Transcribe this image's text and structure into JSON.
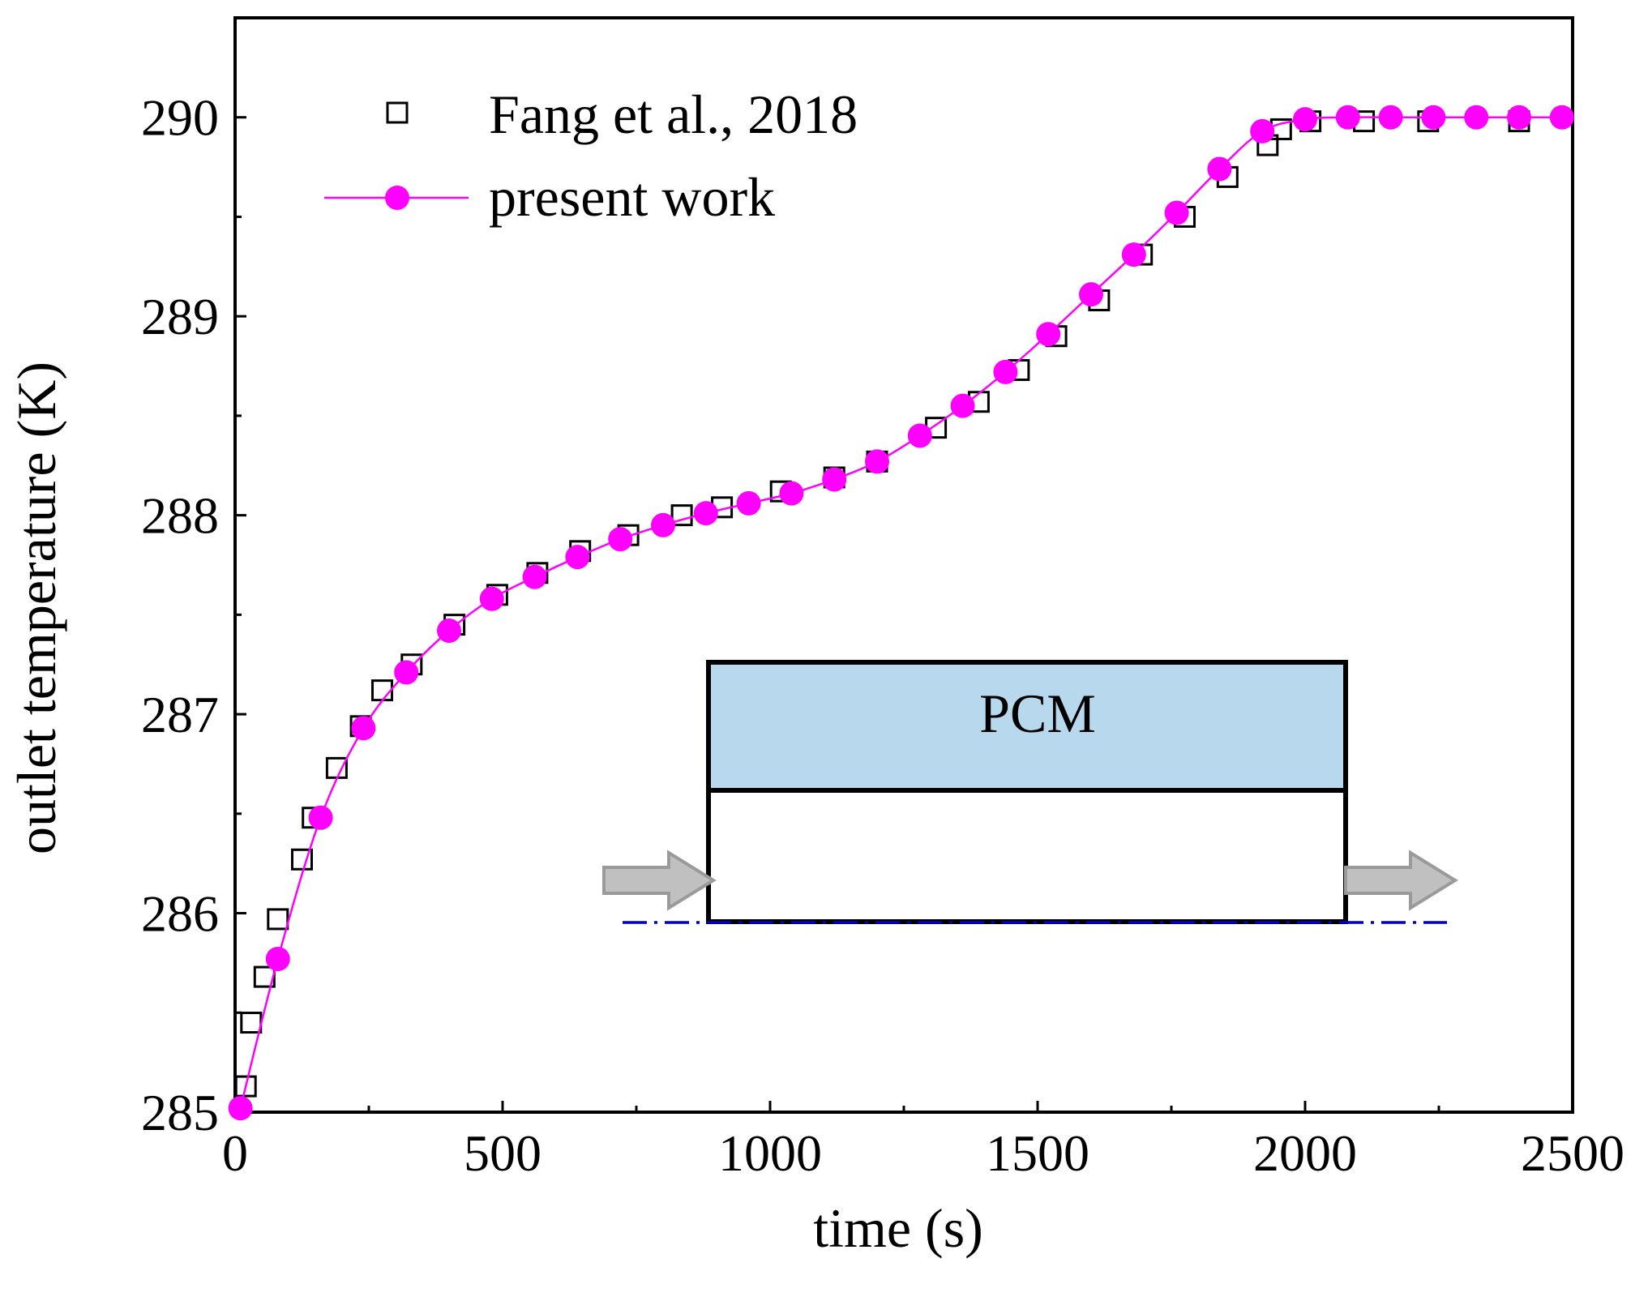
{
  "chart_data": {
    "type": "scatter",
    "title": "",
    "xlabel": "time (s)",
    "ylabel": "outlet temperature (K)",
    "xlim": [
      0,
      2500
    ],
    "ylim": [
      285,
      290.5
    ],
    "xticks": [
      0,
      500,
      1000,
      1500,
      2000,
      2500
    ],
    "xtick_labels": [
      "0",
      "500",
      "1000",
      "1500",
      "2000",
      "2500"
    ],
    "yticks": [
      285,
      286,
      287,
      288,
      289,
      290
    ],
    "ytick_labels": [
      "285",
      "286",
      "287",
      "288",
      "289",
      "290"
    ],
    "grid": false,
    "legend_position": "top-left",
    "series": [
      {
        "name": "Fang et al., 2018",
        "marker": "open-square",
        "color": "#000000",
        "x": [
          20,
          30,
          55,
          80,
          125,
          145,
          190,
          235,
          275,
          330,
          410,
          490,
          565,
          645,
          735,
          835,
          910,
          1020,
          1120,
          1200,
          1310,
          1390,
          1465,
          1535,
          1615,
          1695,
          1775,
          1855,
          1930,
          1955,
          2010,
          2110,
          2230,
          2400
        ],
        "y": [
          285.13,
          285.45,
          285.68,
          285.97,
          286.27,
          286.48,
          286.73,
          286.94,
          287.12,
          287.25,
          287.45,
          287.6,
          287.71,
          287.82,
          287.9,
          288.0,
          288.04,
          288.12,
          288.19,
          288.27,
          288.44,
          288.57,
          288.73,
          288.9,
          289.08,
          289.31,
          289.5,
          289.7,
          289.86,
          289.94,
          289.98,
          289.98,
          289.98,
          289.98
        ]
      },
      {
        "name": "present work",
        "marker": "filled-circle",
        "line": true,
        "color": "#FF00FF",
        "x": [
          10,
          80,
          160,
          240,
          320,
          400,
          480,
          560,
          640,
          720,
          800,
          880,
          960,
          1040,
          1120,
          1200,
          1280,
          1360,
          1440,
          1520,
          1600,
          1680,
          1760,
          1840,
          1920,
          2000,
          2080,
          2160,
          2240,
          2320,
          2400,
          2480
        ],
        "y": [
          285.02,
          285.77,
          286.48,
          286.93,
          287.21,
          287.42,
          287.58,
          287.69,
          287.79,
          287.88,
          287.95,
          288.01,
          288.06,
          288.11,
          288.18,
          288.27,
          288.4,
          288.55,
          288.72,
          288.91,
          289.11,
          289.31,
          289.52,
          289.74,
          289.93,
          289.99,
          290.0,
          290.0,
          290.0,
          290.0,
          290.0,
          290.0
        ]
      }
    ],
    "inset": {
      "label": "PCM",
      "pcm_fill": "#B8D8ED",
      "flow_fill": "#FFFFFF",
      "arrow_fill": "#C0C0C0",
      "centerline_color": "#0000CC"
    }
  }
}
